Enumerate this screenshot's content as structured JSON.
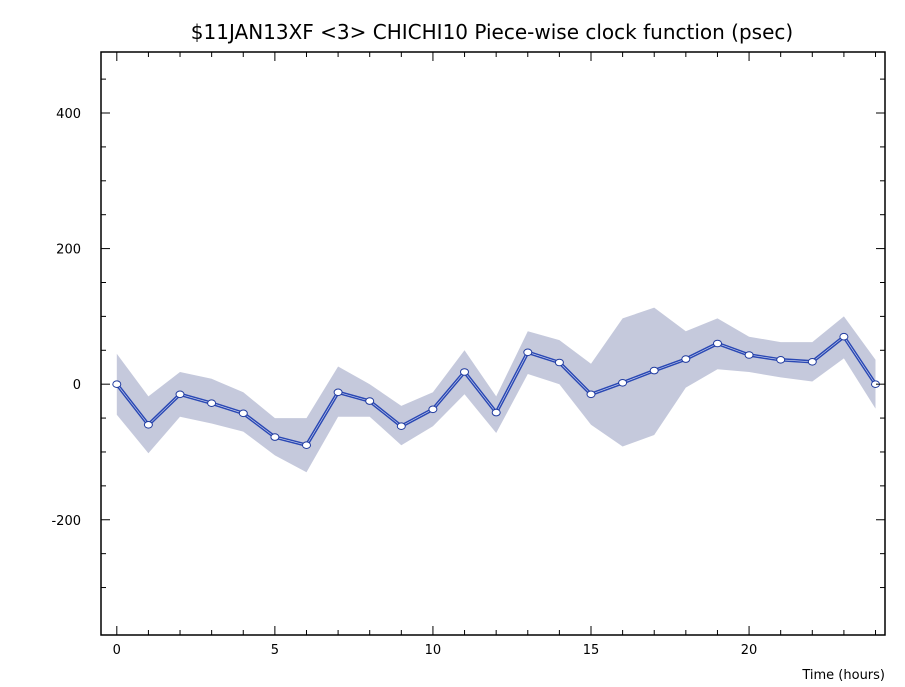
{
  "chart_data": {
    "type": "line",
    "title": "$11JAN13XF <3>   CHICHI10   Piece-wise clock function (psec)",
    "xlabel": "Time (hours)",
    "ylabel": "",
    "xlim": [
      -0.5,
      24.3
    ],
    "ylim": [
      -370,
      490
    ],
    "x_ticks": [
      0,
      5,
      10,
      15,
      20
    ],
    "y_ticks": [
      -200,
      0,
      200,
      400
    ],
    "x_tick_labels": [
      "0",
      "5",
      "10",
      "15",
      "20"
    ],
    "y_tick_labels": [
      "-200",
      "0",
      "200",
      "400"
    ],
    "grid": false,
    "legend": "none",
    "line_color": "#2a48b4",
    "band_color": "#c5c9dc",
    "series": [
      {
        "x": [
          0,
          1,
          2,
          3,
          4,
          5,
          6,
          7,
          8,
          9,
          10,
          11,
          12,
          13,
          14,
          15,
          16,
          17,
          18,
          19,
          20,
          21,
          22,
          23,
          24
        ],
        "values": [
          0,
          -60,
          -15,
          -28,
          -43,
          -78,
          -90,
          -12,
          -25,
          -62,
          -37,
          18,
          -42,
          47,
          32,
          -15,
          2,
          20,
          37,
          60,
          43,
          36,
          33,
          70,
          0
        ],
        "upper": [
          45,
          -18,
          18,
          8,
          -12,
          -50,
          -50,
          26,
          0,
          -32,
          -12,
          50,
          -18,
          78,
          65,
          30,
          97,
          113,
          78,
          97,
          70,
          62,
          62,
          100,
          36
        ],
        "lower": [
          -45,
          -102,
          -48,
          -58,
          -70,
          -105,
          -130,
          -48,
          -48,
          -90,
          -62,
          -15,
          -72,
          15,
          0,
          -60,
          -92,
          -75,
          -5,
          22,
          18,
          10,
          4,
          38,
          -36
        ]
      }
    ]
  }
}
